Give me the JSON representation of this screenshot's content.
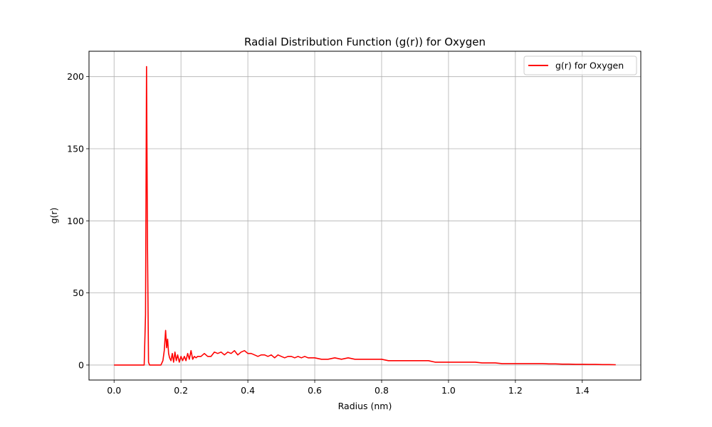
{
  "chart_data": {
    "type": "line",
    "title": "Radial Distribution Function (g(r)) for Oxygen",
    "xlabel": "Radius (nm)",
    "ylabel": "g(r)",
    "xlim": [
      -0.075,
      1.575
    ],
    "ylim": [
      -10.4,
      217.6
    ],
    "xticks": [
      0.0,
      0.2,
      0.4,
      0.6,
      0.8,
      1.0,
      1.2,
      1.4
    ],
    "xtick_labels": [
      "0.0",
      "0.2",
      "0.4",
      "0.6",
      "0.8",
      "1.0",
      "1.2",
      "1.4"
    ],
    "yticks": [
      0,
      50,
      100,
      150,
      200
    ],
    "ytick_labels": [
      "0",
      "50",
      "100",
      "150",
      "200"
    ],
    "grid": true,
    "legend_position": "top-right",
    "series": [
      {
        "name": "g(r) for Oxygen",
        "color": "#ff0000",
        "x": [
          0.0,
          0.02,
          0.04,
          0.06,
          0.08,
          0.086,
          0.09,
          0.094,
          0.097,
          0.1,
          0.103,
          0.106,
          0.11,
          0.12,
          0.13,
          0.14,
          0.146,
          0.15,
          0.154,
          0.157,
          0.16,
          0.163,
          0.166,
          0.17,
          0.174,
          0.178,
          0.182,
          0.186,
          0.19,
          0.195,
          0.2,
          0.205,
          0.21,
          0.215,
          0.22,
          0.225,
          0.23,
          0.235,
          0.24,
          0.245,
          0.25,
          0.26,
          0.27,
          0.28,
          0.29,
          0.3,
          0.31,
          0.32,
          0.33,
          0.34,
          0.35,
          0.36,
          0.37,
          0.38,
          0.39,
          0.4,
          0.41,
          0.42,
          0.43,
          0.44,
          0.45,
          0.46,
          0.47,
          0.48,
          0.49,
          0.5,
          0.51,
          0.52,
          0.53,
          0.54,
          0.55,
          0.56,
          0.57,
          0.58,
          0.6,
          0.62,
          0.64,
          0.66,
          0.68,
          0.7,
          0.72,
          0.74,
          0.76,
          0.78,
          0.8,
          0.82,
          0.84,
          0.86,
          0.88,
          0.9,
          0.92,
          0.94,
          0.96,
          0.98,
          1.0,
          1.02,
          1.04,
          1.06,
          1.08,
          1.1,
          1.12,
          1.14,
          1.16,
          1.18,
          1.2,
          1.22,
          1.24,
          1.26,
          1.28,
          1.3,
          1.32,
          1.34,
          1.36,
          1.38,
          1.4,
          1.42,
          1.44,
          1.46,
          1.48,
          1.5
        ],
        "values": [
          0,
          0,
          0,
          0,
          0,
          0,
          0,
          35,
          207,
          80,
          2,
          0,
          0,
          0,
          0,
          0,
          3,
          10,
          24,
          12,
          18,
          8,
          5,
          3,
          8,
          2,
          9,
          3,
          7,
          2,
          6,
          3,
          6,
          3,
          8,
          4,
          10,
          4,
          6,
          5,
          6,
          6,
          8,
          6,
          6,
          9,
          8,
          9,
          7,
          9,
          8,
          10,
          7,
          9,
          10,
          8,
          8,
          7,
          6,
          7,
          7,
          6,
          7,
          5,
          7,
          6,
          5,
          6,
          6,
          5,
          6,
          5,
          6,
          5,
          5,
          4,
          4,
          5,
          4,
          5,
          4,
          4,
          4,
          4,
          4,
          3,
          3,
          3,
          3,
          3,
          3,
          3,
          2,
          2,
          2,
          2,
          2,
          2,
          2,
          1.5,
          1.5,
          1.5,
          1,
          1,
          1,
          1,
          1,
          1,
          1,
          0.8,
          0.8,
          0.6,
          0.6,
          0.5,
          0.5,
          0.4,
          0.4,
          0.3,
          0.3,
          0.2
        ]
      }
    ]
  }
}
